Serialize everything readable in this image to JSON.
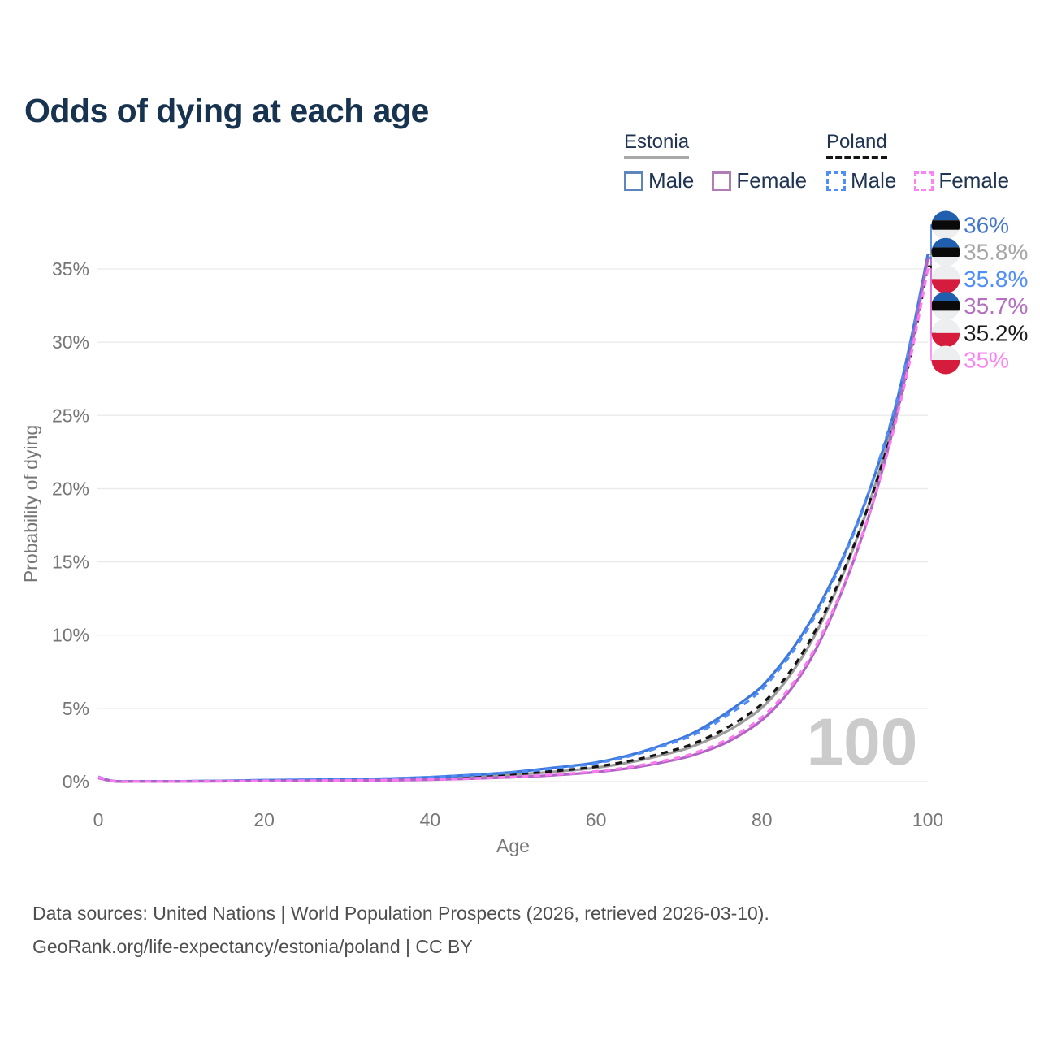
{
  "title": "Odds of dying at each age",
  "legend": {
    "groups": [
      {
        "country": "Estonia",
        "line_style": "solid",
        "underline_color": "#a8a8a8",
        "items": [
          {
            "label": "Male",
            "swatch_color": "#5e86bd",
            "swatch_style": "solid"
          },
          {
            "label": "Female",
            "swatch_color": "#b27cb5",
            "swatch_style": "solid"
          }
        ]
      },
      {
        "country": "Poland",
        "line_style": "dashed",
        "underline_color": "#141414",
        "items": [
          {
            "label": "Male",
            "swatch_color": "#4f8df7",
            "swatch_style": "dashed"
          },
          {
            "label": "Female",
            "swatch_color": "#fb84f2",
            "swatch_style": "dashed"
          }
        ]
      }
    ]
  },
  "chart_data": {
    "type": "line",
    "title": "Odds of dying at each age",
    "xlabel": "Age",
    "ylabel": "Probability of dying",
    "xlim": [
      0,
      100
    ],
    "ylim_percent": [
      0,
      36
    ],
    "x_ticks": [
      0,
      20,
      40,
      60,
      80,
      100
    ],
    "y_ticks_percent": [
      0,
      5,
      10,
      15,
      20,
      25,
      30,
      35
    ],
    "grid": "horizontal",
    "legend_position": "top-right",
    "watermark": "100",
    "ages": [
      0,
      2,
      5,
      10,
      15,
      20,
      25,
      30,
      35,
      40,
      45,
      50,
      55,
      60,
      65,
      70,
      72,
      74,
      76,
      78,
      80,
      82,
      84,
      86,
      88,
      90,
      92,
      94,
      96,
      98,
      100
    ],
    "series": [
      {
        "name": "Estonia Male",
        "country": "Estonia",
        "sex": "Male",
        "style": "solid",
        "color": "#3c77d9",
        "flag": "ee",
        "end_label": "36%",
        "end_label_color": "#4677c8",
        "values_percent": [
          0.28,
          0.03,
          0.02,
          0.02,
          0.05,
          0.1,
          0.12,
          0.15,
          0.2,
          0.3,
          0.45,
          0.65,
          0.95,
          1.3,
          1.95,
          2.9,
          3.4,
          4.05,
          4.8,
          5.6,
          6.5,
          7.8,
          9.3,
          11.1,
          13.2,
          15.6,
          18.4,
          21.6,
          25.4,
          30.3,
          36.0
        ]
      },
      {
        "name": "Estonia (both sexes)",
        "country": "Estonia",
        "sex": "Both",
        "style": "solid",
        "color": "#9b9b9b",
        "flag": "ee",
        "end_label": "35.8%",
        "end_label_color": "#a6a6a6",
        "values_percent": [
          0.26,
          0.02,
          0.02,
          0.02,
          0.04,
          0.07,
          0.09,
          0.11,
          0.15,
          0.22,
          0.32,
          0.47,
          0.67,
          0.95,
          1.42,
          2.1,
          2.48,
          2.95,
          3.5,
          4.2,
          5.05,
          6.25,
          7.75,
          9.6,
          11.85,
          14.45,
          17.45,
          20.9,
          24.9,
          29.8,
          35.8
        ]
      },
      {
        "name": "Poland Male",
        "country": "Poland",
        "sex": "Male",
        "style": "dashed",
        "color": "#4f8df7",
        "flag": "pl",
        "end_label": "35.8%",
        "end_label_color": "#4f8df7",
        "values_percent": [
          0.32,
          0.03,
          0.02,
          0.02,
          0.05,
          0.1,
          0.13,
          0.16,
          0.21,
          0.3,
          0.44,
          0.62,
          0.9,
          1.25,
          1.88,
          2.8,
          3.25,
          3.85,
          4.6,
          5.35,
          6.3,
          7.6,
          9.1,
          10.9,
          13.0,
          15.5,
          18.3,
          21.7,
          25.5,
          30.2,
          35.8
        ]
      },
      {
        "name": "Estonia Female",
        "country": "Estonia",
        "sex": "Female",
        "style": "solid",
        "color": "#b163c4",
        "flag": "ee",
        "end_label": "35.7%",
        "end_label_color": "#b470bf",
        "values_percent": [
          0.24,
          0.02,
          0.01,
          0.01,
          0.03,
          0.04,
          0.05,
          0.07,
          0.09,
          0.13,
          0.2,
          0.3,
          0.44,
          0.65,
          1.0,
          1.55,
          1.86,
          2.25,
          2.75,
          3.4,
          4.2,
          5.3,
          6.7,
          8.5,
          10.8,
          13.5,
          16.6,
          20.2,
          24.5,
          29.6,
          35.7
        ]
      },
      {
        "name": "Poland (both sexes)",
        "country": "Poland",
        "sex": "Both",
        "style": "dashed",
        "color": "#141414",
        "flag": "pl",
        "end_label": "35.2%",
        "end_label_color": "#1a1a1a",
        "values_percent": [
          0.3,
          0.02,
          0.02,
          0.02,
          0.04,
          0.08,
          0.1,
          0.12,
          0.16,
          0.23,
          0.34,
          0.5,
          0.72,
          1.02,
          1.52,
          2.25,
          2.65,
          3.15,
          3.75,
          4.45,
          5.3,
          6.5,
          8.0,
          9.85,
          12.05,
          14.6,
          17.5,
          20.8,
          24.6,
          29.3,
          35.2
        ]
      },
      {
        "name": "Poland Female",
        "country": "Poland",
        "sex": "Female",
        "style": "dashed",
        "color": "#fb7cf0",
        "flag": "pl",
        "end_label": "35%",
        "end_label_color": "#fb84f2",
        "values_percent": [
          0.3,
          0.02,
          0.01,
          0.01,
          0.03,
          0.05,
          0.06,
          0.08,
          0.1,
          0.15,
          0.22,
          0.33,
          0.48,
          0.7,
          1.08,
          1.65,
          1.98,
          2.4,
          2.92,
          3.58,
          4.4,
          5.5,
          6.9,
          8.7,
          11.0,
          13.6,
          16.7,
          20.2,
          24.3,
          29.2,
          35.0
        ]
      }
    ],
    "flag_colors": {
      "ee": [
        "#1f5fad",
        "#0a0a0a",
        "#eceef0"
      ],
      "pl": [
        "#eceef0",
        "#d51c3c"
      ]
    }
  },
  "footer": {
    "line1": "Data sources: United Nations | World Population Prospects (2026, retrieved 2026-03-10).",
    "line2": "GeoRank.org/life-expectancy/estonia/poland | CC BY"
  }
}
